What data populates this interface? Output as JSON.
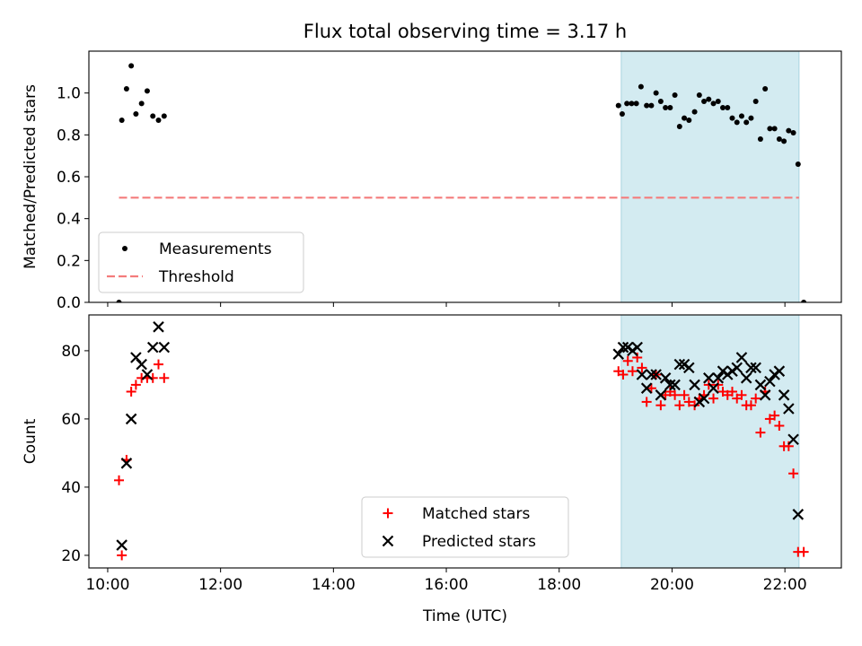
{
  "chart_data": [
    {
      "type": "scatter",
      "title": "Flux total observing time = 3.17 h",
      "xlabel": "",
      "ylabel": "Matched/Predicted stars",
      "xlim": [
        "09:40",
        "23:00"
      ],
      "ylim": [
        0,
        1.2
      ],
      "yticks": [
        "0.0",
        "0.2",
        "0.4",
        "0.6",
        "0.8",
        "1.0"
      ],
      "highlight_span": {
        "x": [
          "19:06",
          "22:15"
        ],
        "color": "#d3ebf1"
      },
      "grid": false,
      "legend_position": "lower-left",
      "series": [
        {
          "name": "Measurements",
          "marker": "dot",
          "color": "#000000",
          "points": [
            [
              "10:12",
              0.0
            ],
            [
              "10:15",
              0.87
            ],
            [
              "10:20",
              1.02
            ],
            [
              "10:25",
              1.13
            ],
            [
              "10:30",
              0.9
            ],
            [
              "10:36",
              0.95
            ],
            [
              "10:42",
              1.01
            ],
            [
              "10:48",
              0.89
            ],
            [
              "10:54",
              0.87
            ],
            [
              "11:00",
              0.89
            ],
            [
              "19:03",
              0.94
            ],
            [
              "19:07",
              0.9
            ],
            [
              "19:12",
              0.95
            ],
            [
              "19:17",
              0.95
            ],
            [
              "19:22",
              0.95
            ],
            [
              "19:27",
              1.03
            ],
            [
              "19:33",
              0.94
            ],
            [
              "19:38",
              0.94
            ],
            [
              "19:43",
              1.0
            ],
            [
              "19:48",
              0.96
            ],
            [
              "19:53",
              0.93
            ],
            [
              "19:58",
              0.93
            ],
            [
              "20:03",
              0.99
            ],
            [
              "20:08",
              0.84
            ],
            [
              "20:13",
              0.88
            ],
            [
              "20:18",
              0.87
            ],
            [
              "20:24",
              0.91
            ],
            [
              "20:29",
              0.99
            ],
            [
              "20:34",
              0.96
            ],
            [
              "20:39",
              0.97
            ],
            [
              "20:44",
              0.95
            ],
            [
              "20:49",
              0.96
            ],
            [
              "20:54",
              0.93
            ],
            [
              "20:59",
              0.93
            ],
            [
              "21:04",
              0.88
            ],
            [
              "21:09",
              0.86
            ],
            [
              "21:14",
              0.89
            ],
            [
              "21:19",
              0.86
            ],
            [
              "21:24",
              0.88
            ],
            [
              "21:29",
              0.96
            ],
            [
              "21:34",
              0.78
            ],
            [
              "21:39",
              1.02
            ],
            [
              "21:44",
              0.83
            ],
            [
              "21:49",
              0.83
            ],
            [
              "21:54",
              0.78
            ],
            [
              "21:59",
              0.77
            ],
            [
              "22:04",
              0.82
            ],
            [
              "22:09",
              0.81
            ],
            [
              "22:14",
              0.66
            ],
            [
              "22:20",
              0.0
            ]
          ]
        },
        {
          "name": "Threshold",
          "marker": "dashed-line",
          "color": "#f47c7c",
          "points": [
            [
              "10:12",
              0.5
            ],
            [
              "22:15",
              0.5
            ]
          ]
        }
      ]
    },
    {
      "type": "scatter",
      "xlabel": "Time (UTC)",
      "ylabel": "Count",
      "xlim": [
        "09:40",
        "23:00"
      ],
      "ylim": [
        16.3,
        90.5
      ],
      "xticks": [
        "10:00",
        "12:00",
        "14:00",
        "16:00",
        "18:00",
        "20:00",
        "22:00"
      ],
      "yticks": [
        "20",
        "40",
        "60",
        "80"
      ],
      "highlight_span": {
        "x": [
          "19:06",
          "22:15"
        ],
        "color": "#d3ebf1"
      },
      "grid": false,
      "legend_position": "lower-center",
      "series": [
        {
          "name": "Matched stars",
          "marker": "plus",
          "color": "#ff0000",
          "points": [
            [
              "10:12",
              42
            ],
            [
              "10:15",
              20
            ],
            [
              "10:20",
              48
            ],
            [
              "10:25",
              68
            ],
            [
              "10:30",
              70
            ],
            [
              "10:36",
              72
            ],
            [
              "10:42",
              72
            ],
            [
              "10:48",
              72
            ],
            [
              "10:54",
              76
            ],
            [
              "11:00",
              72
            ],
            [
              "19:03",
              74
            ],
            [
              "19:08",
              73
            ],
            [
              "19:13",
              77
            ],
            [
              "19:18",
              74
            ],
            [
              "19:23",
              78
            ],
            [
              "19:28",
              75
            ],
            [
              "19:33",
              65
            ],
            [
              "19:38",
              69
            ],
            [
              "19:43",
              73
            ],
            [
              "19:48",
              64
            ],
            [
              "19:53",
              67
            ],
            [
              "19:58",
              68
            ],
            [
              "20:03",
              67
            ],
            [
              "20:08",
              64
            ],
            [
              "20:13",
              67
            ],
            [
              "20:18",
              65
            ],
            [
              "20:24",
              64
            ],
            [
              "20:29",
              66
            ],
            [
              "20:34",
              67
            ],
            [
              "20:39",
              70
            ],
            [
              "20:44",
              66
            ],
            [
              "20:49",
              70
            ],
            [
              "20:54",
              68
            ],
            [
              "20:59",
              67
            ],
            [
              "21:04",
              68
            ],
            [
              "21:09",
              66
            ],
            [
              "21:14",
              67
            ],
            [
              "21:19",
              64
            ],
            [
              "21:24",
              64
            ],
            [
              "21:29",
              66
            ],
            [
              "21:34",
              56
            ],
            [
              "21:39",
              68
            ],
            [
              "21:44",
              60
            ],
            [
              "21:49",
              61
            ],
            [
              "21:54",
              58
            ],
            [
              "21:59",
              52
            ],
            [
              "22:04",
              52
            ],
            [
              "22:09",
              44
            ],
            [
              "22:14",
              21
            ],
            [
              "22:20",
              21
            ]
          ]
        },
        {
          "name": "Predicted stars",
          "marker": "x",
          "color": "#000000",
          "points": [
            [
              "10:15",
              23
            ],
            [
              "10:20",
              47
            ],
            [
              "10:25",
              60
            ],
            [
              "10:30",
              78
            ],
            [
              "10:36",
              76
            ],
            [
              "10:42",
              73
            ],
            [
              "10:48",
              81
            ],
            [
              "10:54",
              87
            ],
            [
              "11:00",
              81
            ],
            [
              "19:03",
              79
            ],
            [
              "19:08",
              81
            ],
            [
              "19:13",
              81
            ],
            [
              "19:18",
              80
            ],
            [
              "19:23",
              81
            ],
            [
              "19:28",
              73
            ],
            [
              "19:33",
              69
            ],
            [
              "19:38",
              73
            ],
            [
              "19:43",
              73
            ],
            [
              "19:48",
              67
            ],
            [
              "19:53",
              72
            ],
            [
              "19:58",
              70
            ],
            [
              "20:03",
              70
            ],
            [
              "20:08",
              76
            ],
            [
              "20:13",
              76
            ],
            [
              "20:18",
              75
            ],
            [
              "20:24",
              70
            ],
            [
              "20:29",
              65
            ],
            [
              "20:34",
              66
            ],
            [
              "20:39",
              72
            ],
            [
              "20:44",
              69
            ],
            [
              "20:49",
              72
            ],
            [
              "20:54",
              74
            ],
            [
              "20:59",
              73
            ],
            [
              "21:04",
              74
            ],
            [
              "21:09",
              75
            ],
            [
              "21:14",
              78
            ],
            [
              "21:19",
              72
            ],
            [
              "21:24",
              75
            ],
            [
              "21:29",
              75
            ],
            [
              "21:34",
              70
            ],
            [
              "21:39",
              67
            ],
            [
              "21:44",
              71
            ],
            [
              "21:49",
              73
            ],
            [
              "21:54",
              74
            ],
            [
              "21:59",
              67
            ],
            [
              "22:04",
              63
            ],
            [
              "22:09",
              54
            ],
            [
              "22:14",
              32
            ]
          ]
        }
      ]
    }
  ]
}
